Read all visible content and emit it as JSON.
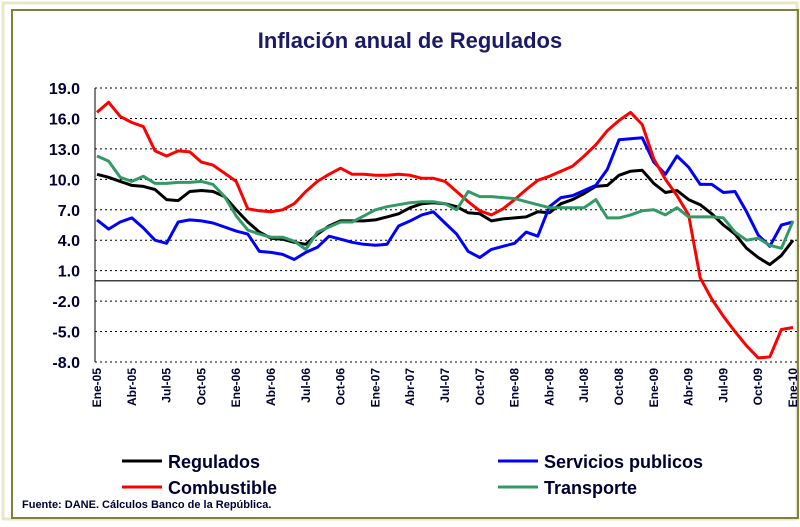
{
  "chart_data": {
    "type": "line",
    "title": "Inflación anual de Regulados",
    "source": "Fuente: DANE. Cálculos Banco de la República.",
    "categories": [
      "Ene-05",
      null,
      null,
      "Abr-05",
      null,
      null,
      "Jul-05",
      null,
      null,
      "Oct-05",
      null,
      null,
      "Ene-06",
      null,
      null,
      "Abr-06",
      null,
      null,
      "Jul-06",
      null,
      null,
      "Oct-06",
      null,
      null,
      "Ene-07",
      null,
      null,
      "Abr-07",
      null,
      null,
      "Jul-07",
      null,
      null,
      "Oct-07",
      null,
      null,
      "Ene-08",
      null,
      null,
      "Abr-08",
      null,
      null,
      "Jul-08",
      null,
      null,
      "Oct-08",
      null,
      null,
      "Ene-09",
      null,
      null,
      "Abr-09",
      null,
      null,
      "Jul-09",
      null,
      null,
      "Oct-09",
      null,
      null,
      "Ene-10"
    ],
    "series": [
      {
        "name": "Regulados",
        "color": "#000000",
        "values": [
          10.5,
          10.2,
          9.8,
          9.4,
          9.3,
          9.0,
          8.0,
          7.9,
          8.8,
          8.9,
          8.8,
          8.3,
          7.0,
          5.8,
          4.8,
          4.2,
          4.1,
          3.8,
          3.6,
          4.6,
          5.4,
          5.9,
          5.9,
          5.9,
          6.0,
          6.3,
          6.6,
          7.2,
          7.6,
          7.7,
          7.6,
          7.3,
          6.7,
          6.6,
          5.9,
          6.1,
          6.2,
          6.3,
          6.8,
          6.7,
          7.6,
          8.0,
          8.6,
          9.3,
          9.4,
          10.4,
          10.8,
          10.9,
          9.6,
          8.7,
          8.9,
          8.0,
          7.5,
          6.6,
          5.5,
          4.6,
          3.2,
          2.3,
          1.6,
          2.5,
          4.0
        ]
      },
      {
        "name": "Servicios publicos",
        "color": "#0000ff",
        "values": [
          6.0,
          5.1,
          5.8,
          6.2,
          5.2,
          4.0,
          3.7,
          5.8,
          6.0,
          5.9,
          5.7,
          5.3,
          4.9,
          4.6,
          2.9,
          2.8,
          2.6,
          2.1,
          2.8,
          3.3,
          4.4,
          4.1,
          3.8,
          3.6,
          3.5,
          3.6,
          5.4,
          5.9,
          6.5,
          6.8,
          5.7,
          4.6,
          2.9,
          2.3,
          3.1,
          3.4,
          3.7,
          4.8,
          4.4,
          7.3,
          8.2,
          8.4,
          8.9,
          9.4,
          11.0,
          13.9,
          14.0,
          14.1,
          11.7,
          10.5,
          12.3,
          11.2,
          9.5,
          9.5,
          8.7,
          8.8,
          6.8,
          4.5,
          3.4,
          5.5,
          5.8
        ]
      },
      {
        "name": "Combustible",
        "color": "#ff0000",
        "values": [
          16.6,
          17.6,
          16.2,
          15.6,
          15.2,
          12.8,
          12.3,
          12.8,
          12.7,
          11.7,
          11.4,
          10.6,
          9.8,
          7.1,
          6.9,
          6.8,
          7.0,
          7.6,
          8.8,
          9.8,
          10.5,
          11.1,
          10.5,
          10.5,
          10.4,
          10.4,
          10.5,
          10.4,
          10.1,
          10.1,
          9.8,
          8.8,
          7.8,
          6.9,
          6.5,
          7.1,
          8.0,
          9.0,
          9.9,
          10.3,
          10.8,
          11.3,
          12.3,
          13.4,
          14.8,
          15.8,
          16.6,
          15.4,
          12.0,
          10.0,
          8.4,
          6.5,
          0.3,
          -1.8,
          -3.5,
          -5.0,
          -6.4,
          -7.6,
          -7.5,
          -4.8,
          -4.6
        ]
      },
      {
        "name": "Transporte",
        "color": "#339966",
        "values": [
          12.3,
          11.8,
          10.2,
          9.8,
          10.3,
          9.6,
          9.6,
          9.7,
          9.7,
          9.8,
          9.5,
          8.3,
          6.4,
          5.0,
          4.6,
          4.3,
          4.3,
          3.9,
          3.1,
          4.8,
          5.3,
          5.8,
          5.8,
          6.4,
          7.0,
          7.3,
          7.5,
          7.7,
          7.8,
          7.8,
          7.6,
          7.0,
          8.8,
          8.3,
          8.3,
          8.2,
          8.1,
          7.8,
          7.5,
          7.2,
          7.2,
          7.2,
          7.2,
          8.0,
          6.2,
          6.2,
          6.5,
          6.9,
          7.0,
          6.5,
          7.2,
          6.3,
          6.3,
          6.3,
          6.2,
          4.8,
          4.0,
          4.2,
          3.5,
          3.2,
          5.9
        ]
      }
    ],
    "ylim": [
      -8,
      19
    ],
    "yticks": [
      {
        "value": 19,
        "label": "19.0"
      },
      {
        "value": 16,
        "label": "16.0"
      },
      {
        "value": 13,
        "label": "13.0"
      },
      {
        "value": 10,
        "label": "10.0"
      },
      {
        "value": 7,
        "label": "7.0"
      },
      {
        "value": 4,
        "label": "4.0"
      },
      {
        "value": 1,
        "label": "1.0"
      },
      {
        "value": -2,
        "label": "-2.0"
      },
      {
        "value": -5,
        "label": "-5.0"
      },
      {
        "value": -8,
        "label": "-8.0"
      }
    ],
    "grid": true
  }
}
